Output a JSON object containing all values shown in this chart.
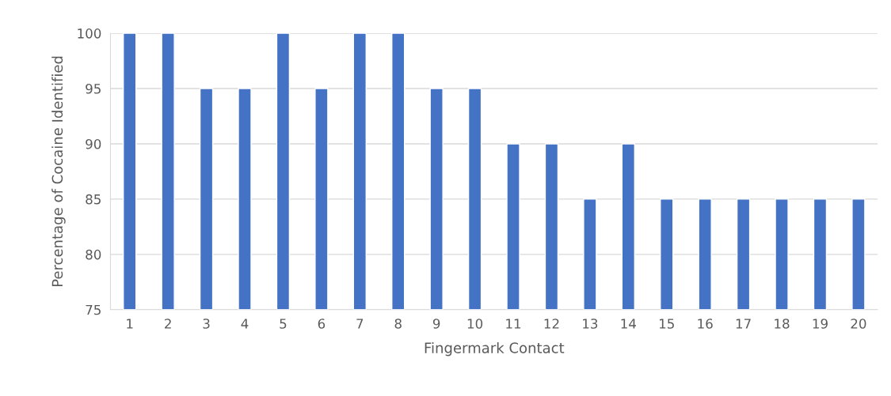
{
  "chart_data": {
    "type": "bar",
    "xlabel": "Fingermark Contact",
    "ylabel": "Percentage of Cocaine Identified",
    "categories": [
      "1",
      "2",
      "3",
      "4",
      "5",
      "6",
      "7",
      "8",
      "9",
      "10",
      "11",
      "12",
      "13",
      "14",
      "15",
      "16",
      "17",
      "18",
      "19",
      "20"
    ],
    "values": [
      100,
      100,
      95,
      95,
      100,
      95,
      100,
      100,
      95,
      95,
      90,
      90,
      85,
      90,
      85,
      85,
      85,
      85,
      85,
      85
    ],
    "color": "#4472c4",
    "ylim": [
      75,
      100
    ],
    "yticks": [
      75,
      80,
      85,
      90,
      95,
      100
    ],
    "grid": "y",
    "legend": false
  }
}
